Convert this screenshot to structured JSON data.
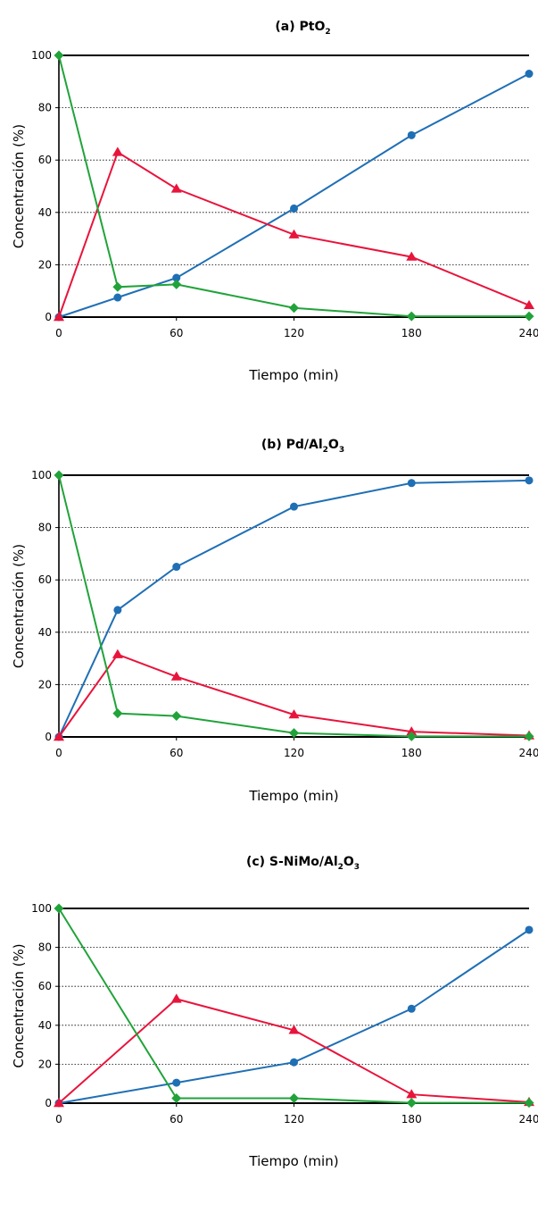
{
  "chart_data": [
    {
      "type": "line",
      "title": {
        "main": "(a) PtO",
        "sub": "2",
        "after": ""
      },
      "xlabel": "Tiempo (min)",
      "ylabel": "Concentración (%)",
      "x_ticks": [
        0,
        60,
        120,
        180,
        240
      ],
      "y_ticks": [
        0,
        20,
        40,
        60,
        80,
        100
      ],
      "xlim": [
        0,
        240
      ],
      "ylim": [
        0,
        100
      ],
      "grid": "horizontal dotted",
      "series": [
        {
          "color": "#1f6fb5",
          "marker": "circle",
          "x": [
            0,
            30,
            60,
            120,
            180,
            240
          ],
          "y": [
            0,
            7.5,
            15,
            41.5,
            69.5,
            93
          ]
        },
        {
          "color": "#e8143c",
          "marker": "triangle",
          "x": [
            0,
            30,
            60,
            120,
            180,
            240
          ],
          "y": [
            0,
            63,
            49,
            31.5,
            23,
            4.5
          ]
        },
        {
          "color": "#21a33a",
          "marker": "diamond",
          "x": [
            0,
            30,
            60,
            120,
            180,
            240
          ],
          "y": [
            100,
            11.5,
            12.5,
            3.5,
            0.3,
            0.3
          ]
        }
      ]
    },
    {
      "type": "line",
      "title": {
        "main": "(b) Pd/Al",
        "sub": "2",
        "mid": "O",
        "sub2": "3"
      },
      "xlabel": "Tiempo (min)",
      "ylabel": "Concentración (%)",
      "x_ticks": [
        0,
        60,
        120,
        180,
        240
      ],
      "y_ticks": [
        0,
        20,
        40,
        60,
        80,
        100
      ],
      "xlim": [
        0,
        240
      ],
      "ylim": [
        0,
        100
      ],
      "grid": "horizontal dotted",
      "series": [
        {
          "color": "#1f6fb5",
          "marker": "circle",
          "x": [
            0,
            30,
            60,
            120,
            180,
            240
          ],
          "y": [
            0,
            48.5,
            65,
            88,
            97,
            98
          ]
        },
        {
          "color": "#e8143c",
          "marker": "triangle",
          "x": [
            0,
            30,
            60,
            120,
            180,
            240
          ],
          "y": [
            0,
            31.5,
            23,
            8.5,
            2,
            0.5
          ]
        },
        {
          "color": "#21a33a",
          "marker": "diamond",
          "x": [
            0,
            30,
            60,
            120,
            180,
            240
          ],
          "y": [
            100,
            9,
            8,
            1.5,
            0.2,
            0.2
          ]
        }
      ]
    },
    {
      "type": "line",
      "title": {
        "main": "(c) S-NiMo/Al",
        "sub": "2",
        "mid": "O",
        "sub2": "3"
      },
      "xlabel": "Tiempo (min)",
      "ylabel": "Concentración (%)",
      "x_ticks": [
        0,
        60,
        120,
        180,
        240
      ],
      "y_ticks": [
        0,
        20,
        40,
        60,
        80,
        100
      ],
      "xlim": [
        0,
        240
      ],
      "ylim": [
        0,
        100
      ],
      "grid": "horizontal dotted",
      "series": [
        {
          "color": "#1f6fb5",
          "marker": "circle",
          "x": [
            0,
            60,
            120,
            180,
            240
          ],
          "y": [
            0,
            10.5,
            21,
            48.5,
            89
          ]
        },
        {
          "color": "#e8143c",
          "marker": "triangle",
          "x": [
            0,
            60,
            120,
            180,
            240
          ],
          "y": [
            0,
            53.5,
            37.5,
            4.5,
            0.5
          ]
        },
        {
          "color": "#21a33a",
          "marker": "diamond",
          "x": [
            0,
            60,
            120,
            180,
            240
          ],
          "y": [
            100,
            2.5,
            2.5,
            0.2,
            0.2
          ]
        }
      ]
    }
  ]
}
